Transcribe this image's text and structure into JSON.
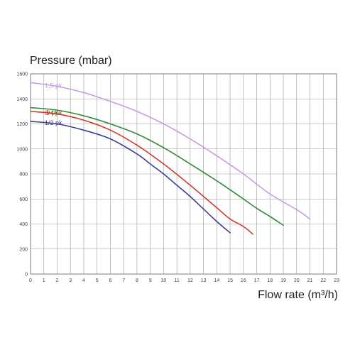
{
  "chart_data": {
    "type": "line",
    "ylabel": "Pressure (mbar)",
    "xlabel": "Flow rate (m³/h)",
    "xlim": [
      0,
      23
    ],
    "ylim": [
      0,
      1600
    ],
    "x_ticks": [
      0,
      1,
      2,
      3,
      4,
      5,
      6,
      7,
      8,
      9,
      10,
      11,
      12,
      13,
      14,
      15,
      16,
      17,
      18,
      19,
      20,
      21,
      22,
      23
    ],
    "y_ticks": [
      0,
      200,
      400,
      600,
      800,
      1000,
      1200,
      1400,
      1600
    ],
    "grid": true,
    "legend": "inline labels at left end of each curve",
    "series": [
      {
        "name": "1,5 pk",
        "color": "#c89be6",
        "x": [
          0,
          2,
          4,
          6,
          8,
          10,
          12,
          14,
          16,
          18,
          20,
          21
        ],
        "y": [
          1530,
          1500,
          1450,
          1380,
          1300,
          1200,
          1080,
          945,
          800,
          640,
          515,
          440
        ]
      },
      {
        "name": "1 pk",
        "color": "#2f8a3a",
        "x": [
          0,
          2,
          4,
          6,
          8,
          10,
          12,
          14,
          16,
          17,
          18,
          19
        ],
        "y": [
          1330,
          1310,
          1265,
          1200,
          1120,
          1010,
          880,
          745,
          600,
          525,
          460,
          390
        ]
      },
      {
        "name": "3/4 pk",
        "color": "#d03a2a",
        "x": [
          0,
          2,
          4,
          6,
          8,
          10,
          12,
          14,
          15,
          16,
          16.7
        ],
        "y": [
          1300,
          1280,
          1230,
          1150,
          1030,
          880,
          710,
          530,
          440,
          380,
          320
        ]
      },
      {
        "name": "1/2 pk",
        "color": "#3a3f9a",
        "x": [
          0,
          2,
          4,
          6,
          8,
          9,
          10,
          11,
          12,
          13,
          14,
          15
        ],
        "y": [
          1220,
          1200,
          1150,
          1080,
          960,
          880,
          800,
          710,
          620,
          520,
          420,
          330
        ]
      }
    ]
  }
}
